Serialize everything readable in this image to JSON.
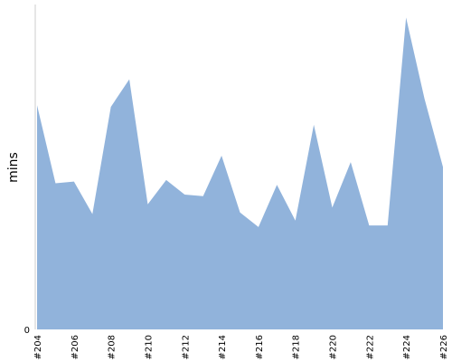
{
  "chart_data": {
    "type": "area",
    "xlabel": "",
    "ylabel": "mins",
    "x": [
      "#204",
      "#205",
      "#206",
      "#207",
      "#208",
      "#209",
      "#210",
      "#211",
      "#212",
      "#213",
      "#214",
      "#215",
      "#216",
      "#217",
      "#218",
      "#219",
      "#220",
      "#221",
      "#222",
      "#223",
      "#224",
      "#225",
      "#226"
    ],
    "x_tick_labels": [
      "#204",
      "#206",
      "#208",
      "#210",
      "#212",
      "#214",
      "#216",
      "#218",
      "#220",
      "#222",
      "#224",
      "#226"
    ],
    "series": [
      {
        "values": [
          69,
          45,
          45.5,
          35.5,
          68.5,
          77,
          38.5,
          46,
          41.5,
          41,
          53.5,
          36,
          31.5,
          44.5,
          33.5,
          63,
          37.5,
          51.5,
          32,
          32,
          96,
          71,
          50
        ]
      }
    ],
    "ylim": [
      0,
      100
    ],
    "y_tick_labels": [
      "0"
    ],
    "grid": false,
    "colors": {
      "area": "#91b3db",
      "axis": "#cccccc"
    }
  }
}
